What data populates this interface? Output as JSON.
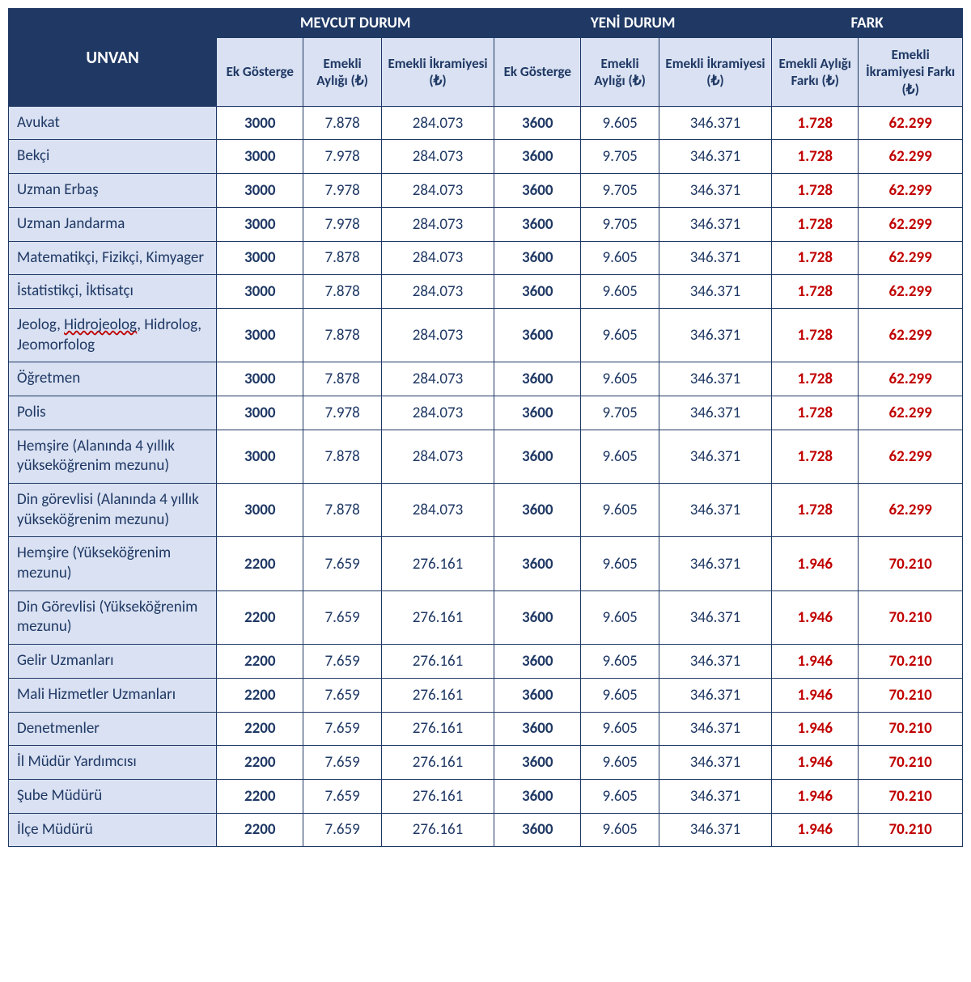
{
  "colors": {
    "header_bg": "#1f3864",
    "header_text": "#ffffff",
    "subhead_bg": "#d9e1f2",
    "subhead_text": "#1f3864",
    "cell_text": "#1f3864",
    "fark_text": "#c00000",
    "border": "#1f3864",
    "spell_wave": "#c00000"
  },
  "fonts": {
    "family": "Calibri",
    "header_size_pt": 14,
    "subhead_size_pt": 13,
    "body_size_pt": 14
  },
  "headers": {
    "unvan": "UNVAN",
    "group_mevcut": "MEVCUT DURUM",
    "group_yeni": "YENİ DURUM",
    "group_fark": "FARK",
    "ek_gosterge": "Ek Gösterge",
    "emekli_ayligi": "Emekli Aylığı (₺)",
    "emekli_ikramiyesi": "Emekli İkramiyesi (₺)",
    "fark_aylik": "Emekli Aylığı Farkı (₺)",
    "fark_ikram": "Emekli İkramiyesi Farkı (₺)"
  },
  "columns": [
    {
      "key": "title",
      "label": "UNVAN",
      "align": "left",
      "bold": false
    },
    {
      "key": "m_ek",
      "label": "Ek Gösterge",
      "align": "center",
      "bold": true
    },
    {
      "key": "m_aylik",
      "label": "Emekli Aylığı (₺)",
      "align": "center",
      "bold": false
    },
    {
      "key": "m_ikram",
      "label": "Emekli İkramiyesi (₺)",
      "align": "center",
      "bold": false
    },
    {
      "key": "y_ek",
      "label": "Ek Gösterge",
      "align": "center",
      "bold": true
    },
    {
      "key": "y_aylik",
      "label": "Emekli Aylığı (₺)",
      "align": "center",
      "bold": false
    },
    {
      "key": "y_ikram",
      "label": "Emekli İkramiyesi (₺)",
      "align": "center",
      "bold": false
    },
    {
      "key": "f_aylik",
      "label": "Emekli Aylığı Farkı (₺)",
      "align": "center",
      "bold": true,
      "color": "#c00000"
    },
    {
      "key": "f_ikram",
      "label": "Emekli İkramiyesi Farkı (₺)",
      "align": "center",
      "bold": true,
      "color": "#c00000"
    }
  ],
  "rows": [
    {
      "title": "Avukat",
      "m_ek": "3000",
      "m_aylik": "7.878",
      "m_ikram": "284.073",
      "y_ek": "3600",
      "y_aylik": "9.605",
      "y_ikram": "346.371",
      "f_aylik": "1.728",
      "f_ikram": "62.299"
    },
    {
      "title": "Bekçi",
      "m_ek": "3000",
      "m_aylik": "7.978",
      "m_ikram": "284.073",
      "y_ek": "3600",
      "y_aylik": "9.705",
      "y_ikram": "346.371",
      "f_aylik": "1.728",
      "f_ikram": "62.299"
    },
    {
      "title": "Uzman Erbaş",
      "m_ek": "3000",
      "m_aylik": "7.978",
      "m_ikram": "284.073",
      "y_ek": "3600",
      "y_aylik": "9.705",
      "y_ikram": "346.371",
      "f_aylik": "1.728",
      "f_ikram": "62.299"
    },
    {
      "title": "Uzman Jandarma",
      "m_ek": "3000",
      "m_aylik": "7.978",
      "m_ikram": "284.073",
      "y_ek": "3600",
      "y_aylik": "9.705",
      "y_ikram": "346.371",
      "f_aylik": "1.728",
      "f_ikram": "62.299"
    },
    {
      "title": "Matematikçi, Fizikçi, Kimyager",
      "m_ek": "3000",
      "m_aylik": "7.878",
      "m_ikram": "284.073",
      "y_ek": "3600",
      "y_aylik": "9.605",
      "y_ikram": "346.371",
      "f_aylik": "1.728",
      "f_ikram": "62.299"
    },
    {
      "title": "İstatistikçi, İktisatçı",
      "m_ek": "3000",
      "m_aylik": "7.878",
      "m_ikram": "284.073",
      "y_ek": "3600",
      "y_aylik": "9.605",
      "y_ikram": "346.371",
      "f_aylik": "1.728",
      "f_ikram": "62.299"
    },
    {
      "title_html": "Jeolog, <span class=\"spellcheck\">Hidrojeolog</span>, Hidrolog, Jeomorfolog",
      "title": "Jeolog, Hidrojeolog, Hidrolog, Jeomorfolog",
      "m_ek": "3000",
      "m_aylik": "7.878",
      "m_ikram": "284.073",
      "y_ek": "3600",
      "y_aylik": "9.605",
      "y_ikram": "346.371",
      "f_aylik": "1.728",
      "f_ikram": "62.299"
    },
    {
      "title": "Öğretmen",
      "m_ek": "3000",
      "m_aylik": "7.878",
      "m_ikram": "284.073",
      "y_ek": "3600",
      "y_aylik": "9.605",
      "y_ikram": "346.371",
      "f_aylik": "1.728",
      "f_ikram": "62.299"
    },
    {
      "title": "Polis",
      "m_ek": "3000",
      "m_aylik": "7.978",
      "m_ikram": "284.073",
      "y_ek": "3600",
      "y_aylik": "9.705",
      "y_ikram": "346.371",
      "f_aylik": "1.728",
      "f_ikram": "62.299"
    },
    {
      "title": "Hemşire (Alanında 4 yıllık yükseköğrenim mezunu)",
      "m_ek": "3000",
      "m_aylik": "7.878",
      "m_ikram": "284.073",
      "y_ek": "3600",
      "y_aylik": "9.605",
      "y_ikram": "346.371",
      "f_aylik": "1.728",
      "f_ikram": "62.299"
    },
    {
      "title": "Din görevlisi (Alanında 4 yıllık yükseköğrenim mezunu)",
      "m_ek": "3000",
      "m_aylik": "7.878",
      "m_ikram": "284.073",
      "y_ek": "3600",
      "y_aylik": "9.605",
      "y_ikram": "346.371",
      "f_aylik": "1.728",
      "f_ikram": "62.299"
    },
    {
      "title": "Hemşire (Yükseköğrenim mezunu)",
      "m_ek": "2200",
      "m_aylik": "7.659",
      "m_ikram": "276.161",
      "y_ek": "3600",
      "y_aylik": "9.605",
      "y_ikram": "346.371",
      "f_aylik": "1.946",
      "f_ikram": "70.210"
    },
    {
      "title": "Din Görevlisi (Yükseköğrenim mezunu)",
      "m_ek": "2200",
      "m_aylik": "7.659",
      "m_ikram": "276.161",
      "y_ek": "3600",
      "y_aylik": "9.605",
      "y_ikram": "346.371",
      "f_aylik": "1.946",
      "f_ikram": "70.210"
    },
    {
      "title": "Gelir Uzmanları",
      "m_ek": "2200",
      "m_aylik": "7.659",
      "m_ikram": "276.161",
      "y_ek": "3600",
      "y_aylik": "9.605",
      "y_ikram": "346.371",
      "f_aylik": "1.946",
      "f_ikram": "70.210"
    },
    {
      "title": "Mali Hizmetler Uzmanları",
      "m_ek": "2200",
      "m_aylik": "7.659",
      "m_ikram": "276.161",
      "y_ek": "3600",
      "y_aylik": "9.605",
      "y_ikram": "346.371",
      "f_aylik": "1.946",
      "f_ikram": "70.210"
    },
    {
      "title": "Denetmenler",
      "m_ek": "2200",
      "m_aylik": "7.659",
      "m_ikram": "276.161",
      "y_ek": "3600",
      "y_aylik": "9.605",
      "y_ikram": "346.371",
      "f_aylik": "1.946",
      "f_ikram": "70.210"
    },
    {
      "title": "İl Müdür Yardımcısı",
      "m_ek": "2200",
      "m_aylik": "7.659",
      "m_ikram": "276.161",
      "y_ek": "3600",
      "y_aylik": "9.605",
      "y_ikram": "346.371",
      "f_aylik": "1.946",
      "f_ikram": "70.210"
    },
    {
      "title": "Şube Müdürü",
      "m_ek": "2200",
      "m_aylik": "7.659",
      "m_ikram": "276.161",
      "y_ek": "3600",
      "y_aylik": "9.605",
      "y_ikram": "346.371",
      "f_aylik": "1.946",
      "f_ikram": "70.210"
    },
    {
      "title": "İlçe Müdürü",
      "m_ek": "2200",
      "m_aylik": "7.659",
      "m_ikram": "276.161",
      "y_ek": "3600",
      "y_aylik": "9.605",
      "y_ikram": "346.371",
      "f_aylik": "1.946",
      "f_ikram": "70.210"
    }
  ]
}
